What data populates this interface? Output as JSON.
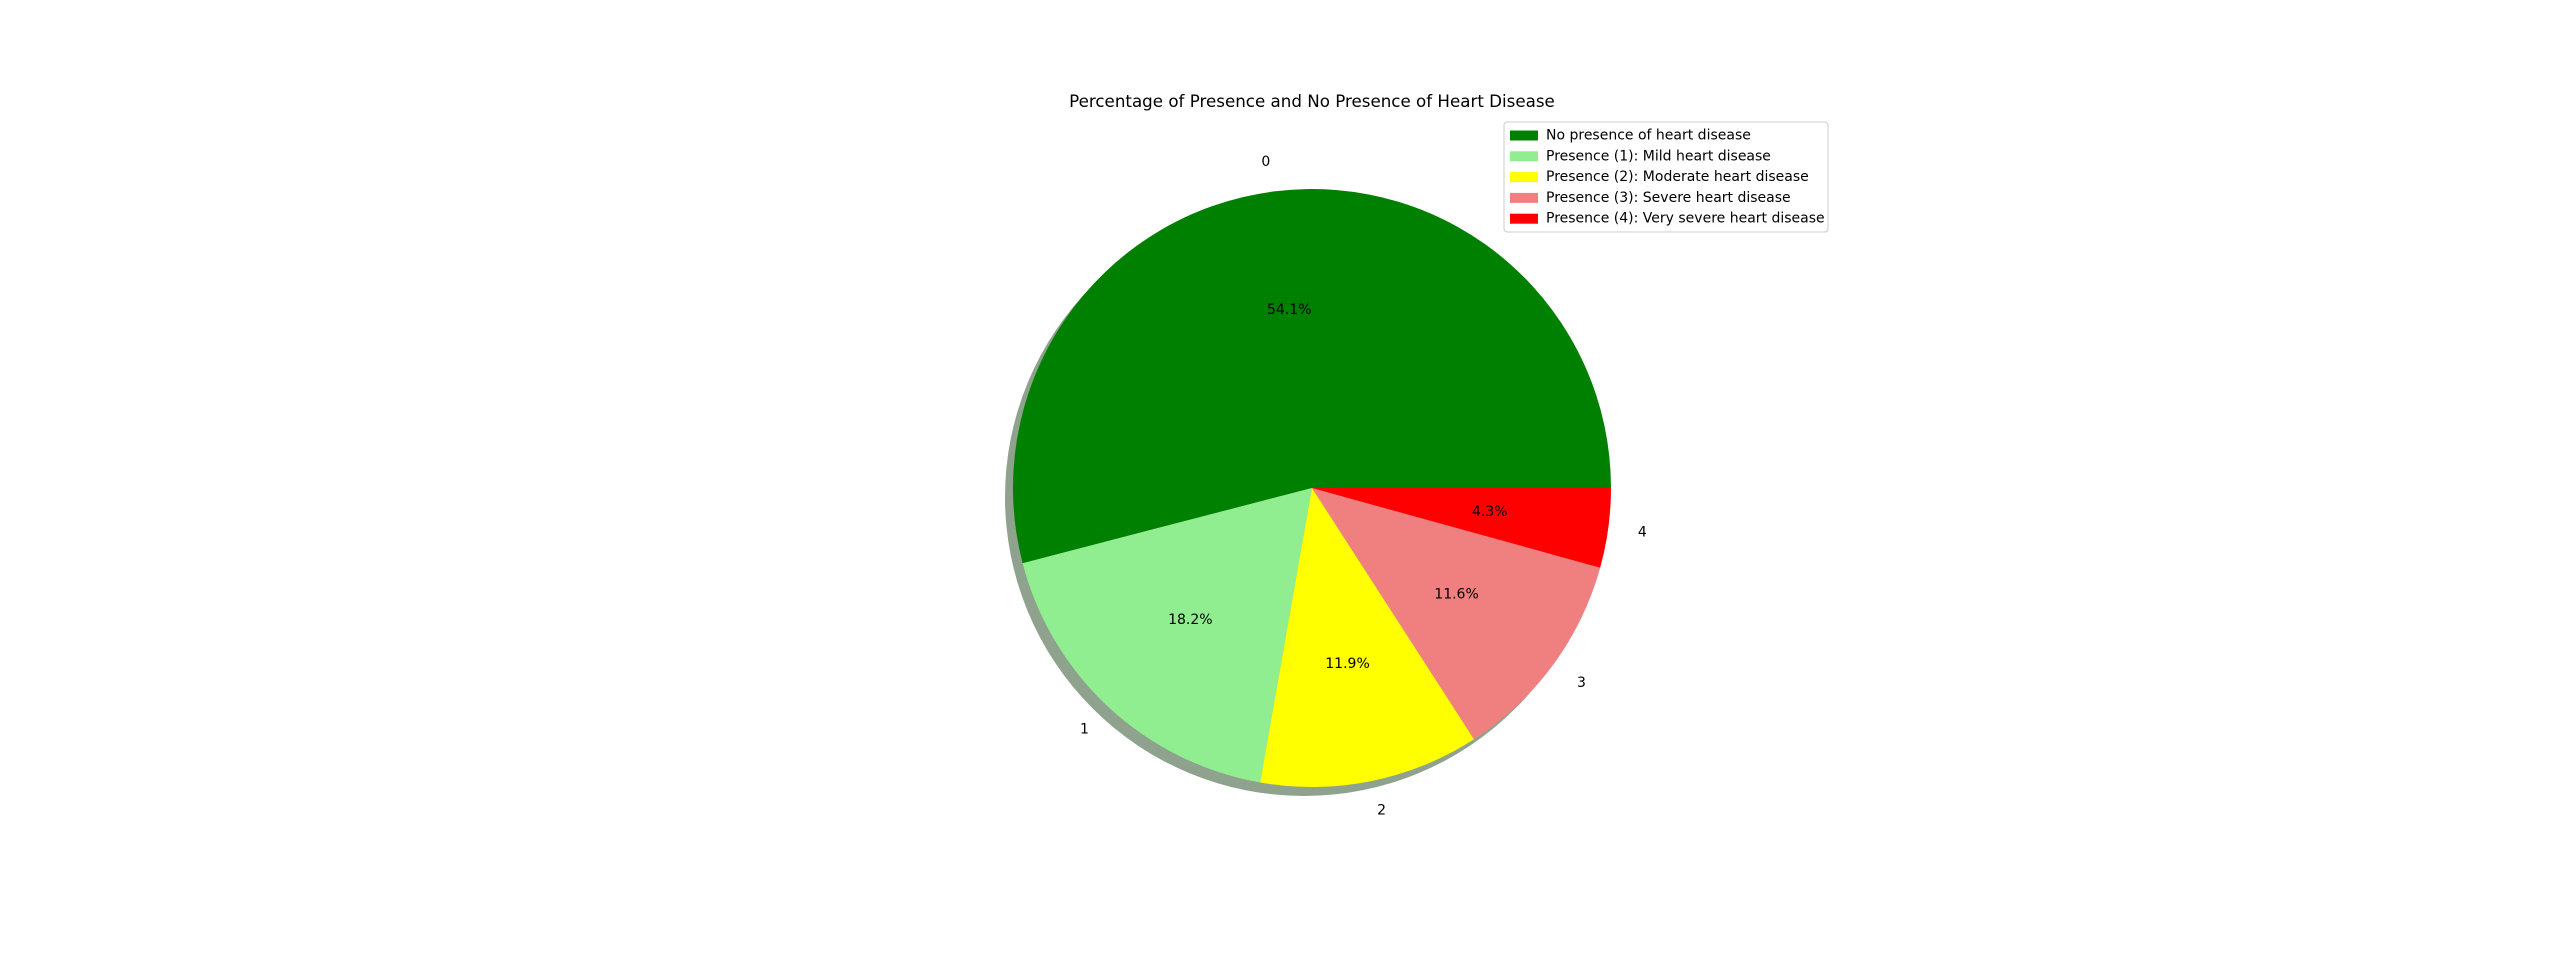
{
  "chart_data": {
    "type": "pie",
    "title": "Percentage of Presence and No Presence of Heart Disease",
    "categories": [
      "0",
      "1",
      "2",
      "3",
      "4"
    ],
    "values": [
      54.1,
      18.2,
      11.9,
      11.6,
      4.3
    ],
    "value_labels": [
      "54.1%",
      "18.2%",
      "11.9%",
      "11.6%",
      "4.3%"
    ],
    "colors": [
      "#008000",
      "#90ee90",
      "#ffff00",
      "#f08080",
      "#ff0000"
    ],
    "start_angle_deg": 0,
    "direction": "counterclockwise",
    "shadow": true,
    "legend": {
      "placement": "top-right",
      "entries": [
        "No presence of heart disease",
        "Presence (1): Mild heart disease",
        "Presence (2): Moderate heart disease",
        "Presence (3): Severe heart disease",
        "Presence (4): Very severe heart disease"
      ]
    }
  }
}
